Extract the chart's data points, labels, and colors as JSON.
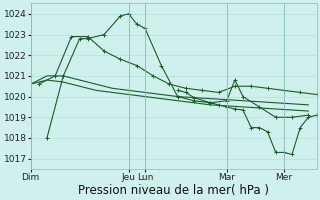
{
  "background_color": "#cff0ec",
  "grid_color": "#aaddd8",
  "line_color": "#1a5c28",
  "ylim": [
    1016.5,
    1024.5
  ],
  "yticks": [
    1017,
    1018,
    1019,
    1020,
    1021,
    1022,
    1023,
    1024
  ],
  "xlabel": "Pression niveau de la mer( hPa )",
  "xlabel_fontsize": 8.5,
  "tick_fontsize": 6.5,
  "day_labels": [
    "Dim",
    "Jeu",
    "Lun",
    "Mar",
    "Mer"
  ],
  "day_positions": [
    0,
    72,
    84,
    144,
    186
  ],
  "xlim": [
    0,
    210
  ],
  "series1_x": [
    0,
    12,
    24,
    36,
    48,
    60,
    72,
    84,
    96,
    108,
    120,
    132,
    144,
    156,
    168,
    180,
    192,
    204
  ],
  "series1_y": [
    1020.6,
    1020.8,
    1020.7,
    1020.5,
    1020.3,
    1020.2,
    1020.1,
    1020.0,
    1019.9,
    1019.8,
    1019.7,
    1019.6,
    1019.55,
    1019.5,
    1019.45,
    1019.4,
    1019.35,
    1019.3
  ],
  "series2_x": [
    0,
    12,
    24,
    36,
    48,
    60,
    72,
    84,
    96,
    108,
    120,
    132,
    144,
    156,
    168,
    180,
    192,
    204
  ],
  "series2_y": [
    1020.6,
    1021.0,
    1021.0,
    1020.8,
    1020.6,
    1020.4,
    1020.3,
    1020.2,
    1020.1,
    1020.0,
    1019.95,
    1019.9,
    1019.85,
    1019.8,
    1019.75,
    1019.7,
    1019.65,
    1019.6
  ],
  "series3_x": [
    6,
    18,
    30,
    42,
    54,
    66,
    78,
    90,
    102,
    114,
    126,
    138,
    150,
    162,
    174,
    186,
    198,
    210
  ],
  "series3_y": [
    1020.6,
    1021.0,
    1022.9,
    1022.9,
    1022.2,
    1021.8,
    1021.5,
    1021.0,
    1020.6,
    1020.4,
    1020.3,
    1020.2,
    1020.5,
    1020.5,
    1020.4,
    1020.3,
    1020.2,
    1020.1
  ],
  "series4_x": [
    12,
    24,
    36,
    42,
    54,
    66,
    72,
    78,
    84,
    96,
    108,
    120,
    132,
    144,
    150,
    156,
    168,
    180,
    192,
    204
  ],
  "series4_y": [
    1018.0,
    1021.0,
    1022.8,
    1022.8,
    1023.0,
    1023.9,
    1024.0,
    1023.5,
    1023.3,
    1021.5,
    1020.0,
    1019.8,
    1019.7,
    1019.8,
    1020.8,
    1020.0,
    1019.5,
    1019.0,
    1019.0,
    1019.1
  ],
  "series5_x": [
    108,
    114,
    120,
    132,
    138,
    144,
    150,
    156,
    162,
    168,
    174,
    180,
    186,
    192,
    198,
    204,
    210
  ],
  "series5_y": [
    1020.3,
    1020.2,
    1019.95,
    1019.7,
    1019.6,
    1019.5,
    1019.4,
    1019.35,
    1018.5,
    1018.5,
    1018.3,
    1017.3,
    1017.3,
    1017.2,
    1018.5,
    1019.0,
    1019.1
  ]
}
